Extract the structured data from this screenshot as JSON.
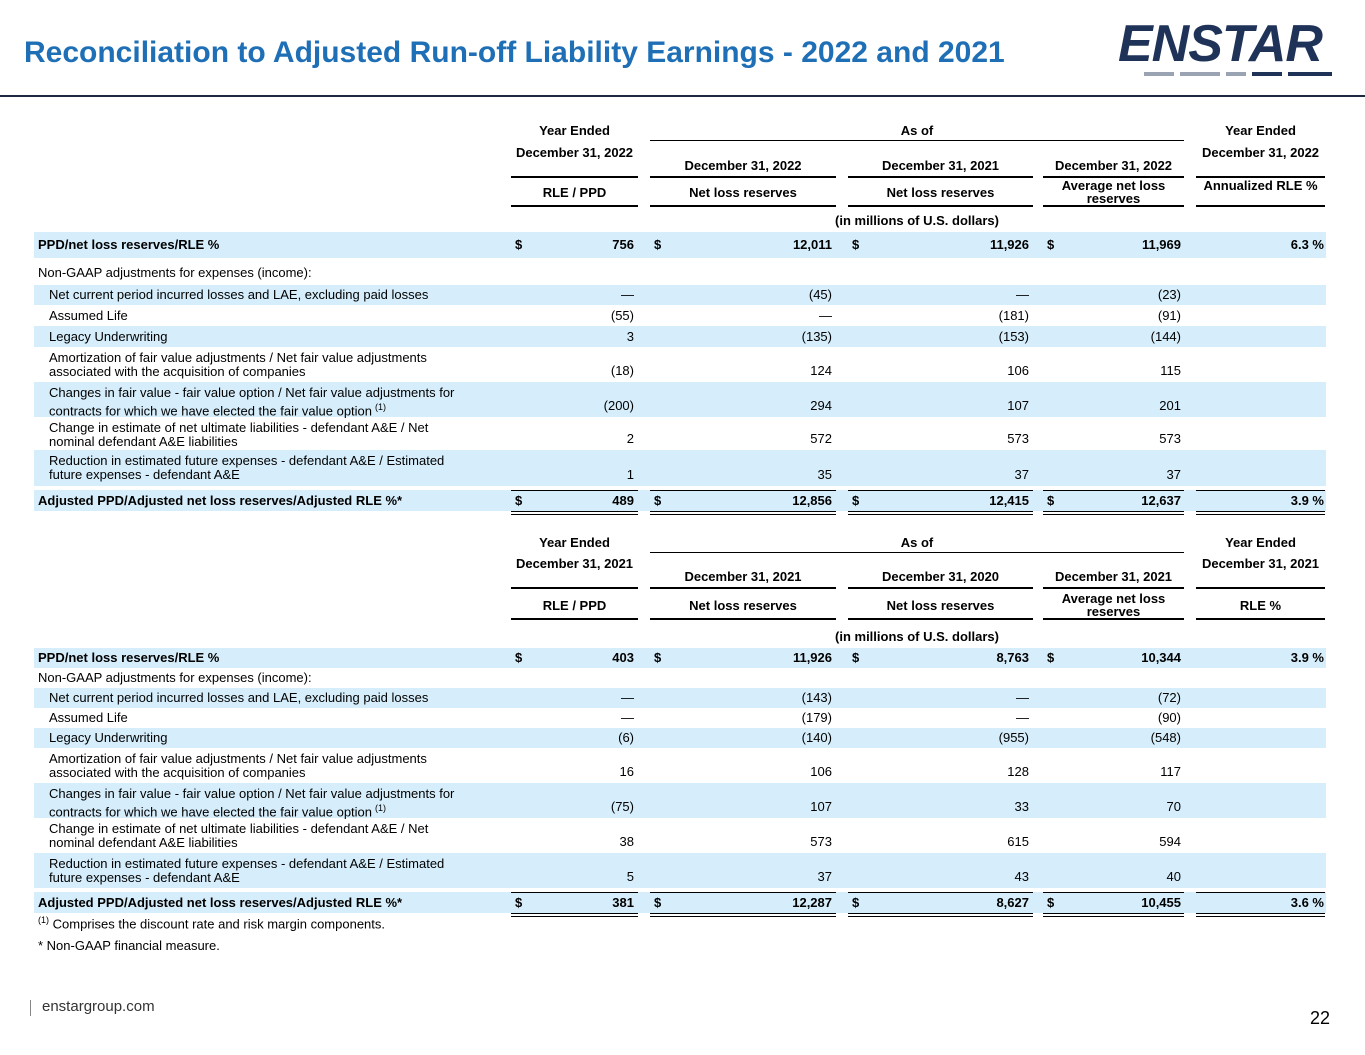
{
  "title": "Reconciliation to Adjusted Run-off Liability Earnings - 2022 and 2021",
  "logo_text": "ENSTAR",
  "footer": {
    "url": "enstargroup.com",
    "page": "22"
  },
  "note_units": "(in millions of U.S. dollars)",
  "t2022": {
    "group": {
      "left": "Year Ended",
      "mid": "As of",
      "right": "Year Ended"
    },
    "dates": [
      "December 31, 2022",
      "December 31, 2022",
      "December 31, 2021",
      "December 31, 2022",
      "December 31, 2022"
    ],
    "metrics": [
      "RLE / PPD",
      "Net loss reserves",
      "Net loss reserves",
      "Average net loss reserves",
      "Annualized RLE %"
    ],
    "top_row": {
      "label": "PPD/net loss reserves/RLE %",
      "values": [
        "756",
        "12,011",
        "11,926",
        "11,969",
        "6.3 %"
      ]
    },
    "section_label": "Non-GAAP adjustments for expenses (income):",
    "rows": [
      {
        "label": "Net current period incurred losses and LAE, excluding paid losses",
        "label2": "",
        "values": [
          "—",
          "(45)",
          "—",
          "(23)"
        ]
      },
      {
        "label": "Assumed Life",
        "label2": "",
        "values": [
          "(55)",
          "—",
          "(181)",
          "(91)"
        ]
      },
      {
        "label": "Legacy Underwriting",
        "label2": "",
        "values": [
          "3",
          "(135)",
          "(153)",
          "(144)"
        ]
      },
      {
        "label": "Amortization of fair value adjustments / Net fair value adjustments",
        "label2": "associated with the acquisition of companies",
        "values": [
          "(18)",
          "124",
          "106",
          "115"
        ]
      },
      {
        "label": "Changes in fair value - fair value option / Net fair value adjustments for",
        "label2": "contracts for which we have elected the fair value option",
        "values": [
          "(200)",
          "294",
          "107",
          "201"
        ]
      },
      {
        "label": "Change in estimate of net ultimate liabilities - defendant A&E / Net",
        "label2": "nominal defendant A&E liabilities",
        "values": [
          "2",
          "572",
          "573",
          "573"
        ]
      },
      {
        "label": "Reduction in estimated future expenses - defendant A&E / Estimated",
        "label2": "future expenses - defendant A&E",
        "values": [
          "1",
          "35",
          "37",
          "37"
        ]
      }
    ],
    "total_row": {
      "label": "Adjusted PPD/Adjusted net loss reserves/Adjusted RLE %*",
      "values": [
        "489",
        "12,856",
        "12,415",
        "12,637",
        "3.9 %"
      ]
    }
  },
  "t2021": {
    "group": {
      "left": "Year Ended",
      "mid": "As of",
      "right": "Year Ended"
    },
    "dates": [
      "December 31, 2021",
      "December 31, 2021",
      "December 31, 2020",
      "December 31, 2021",
      "December 31, 2021"
    ],
    "metrics": [
      "RLE / PPD",
      "Net loss reserves",
      "Net loss reserves",
      "Average net loss reserves",
      "RLE %"
    ],
    "top_row": {
      "label": "PPD/net loss reserves/RLE %",
      "values": [
        "403",
        "11,926",
        "8,763",
        "10,344",
        "3.9 %"
      ]
    },
    "section_label": "Non-GAAP adjustments for expenses (income):",
    "rows": [
      {
        "label": "Net current period incurred losses and LAE, excluding paid losses",
        "label2": "",
        "values": [
          "—",
          "(143)",
          "—",
          "(72)"
        ]
      },
      {
        "label": "Assumed Life",
        "label2": "",
        "values": [
          "—",
          "(179)",
          "—",
          "(90)"
        ]
      },
      {
        "label": "Legacy Underwriting",
        "label2": "",
        "values": [
          "(6)",
          "(140)",
          "(955)",
          "(548)"
        ]
      },
      {
        "label": "Amortization of fair value adjustments / Net fair value adjustments",
        "label2": "associated with the acquisition of companies",
        "values": [
          "16",
          "106",
          "128",
          "117"
        ]
      },
      {
        "label": "Changes in fair value - fair value option / Net fair value adjustments for",
        "label2": "contracts for which we have elected the fair value option",
        "values": [
          "(75)",
          "107",
          "33",
          "70"
        ]
      },
      {
        "label": "Change in estimate of net ultimate liabilities - defendant A&E / Net",
        "label2": "nominal defendant A&E liabilities",
        "values": [
          "38",
          "573",
          "615",
          "594"
        ]
      },
      {
        "label": "Reduction in estimated future expenses - defendant A&E / Estimated",
        "label2": "future expenses - defendant A&E",
        "values": [
          "5",
          "37",
          "43",
          "40"
        ]
      }
    ],
    "total_row": {
      "label": "Adjusted PPD/Adjusted net loss reserves/Adjusted RLE %*",
      "values": [
        "381",
        "12,287",
        "8,627",
        "10,455",
        "3.6 %"
      ]
    }
  },
  "footnotes": {
    "fn1_marker": "(1)",
    "fn1_text": "Comprises the discount rate and risk margin components.",
    "fn2": "* Non-GAAP financial measure."
  },
  "currency_symbol": "$",
  "brand_colors": {
    "title": "#1e6fb5",
    "shade": "#d6eefb",
    "logo": "#1f3258"
  }
}
